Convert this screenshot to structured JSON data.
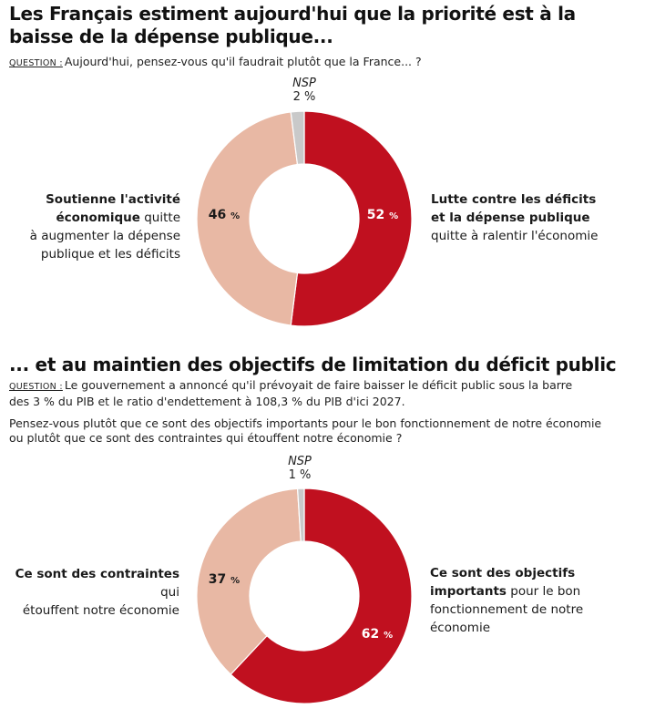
{
  "chart_data": [
    {
      "type": "pie",
      "title": "Les Français estiment aujourd'hui que la priorité est à la baisse de la dépense publique...",
      "question_tag": "QUESTION :",
      "question": "Aujourd'hui, pensez-vous qu'il faudrait plutôt que la France... ?",
      "slices": [
        {
          "name": "Lutte contre les déficits et la dépense publique quitte à ralentir l'économie",
          "value": 52,
          "label": "52 %",
          "color": "#c0101f"
        },
        {
          "name": "Soutienne l'activité économique quitte à augmenter la dépense publique et les déficits",
          "value": 46,
          "label": "46 %",
          "color": "#e8b8a4"
        },
        {
          "name": "NSP",
          "value": 2,
          "label": "2 %",
          "color": "#c9c9c9"
        }
      ],
      "labels": {
        "right_bold_1": "Lutte contre les déficits",
        "right_bold_2": "et la dépense publique",
        "right_normal": "quitte à ralentir l'économie",
        "left_bold_1": "Soutienne l'activité",
        "left_bold_2": "économique",
        "left_normal_2": " quitte",
        "left_normal_3": "à augmenter la dépense",
        "left_normal_4": "publique et les déficits",
        "nsp_name": "NSP",
        "nsp_value": "2 %"
      }
    },
    {
      "type": "pie",
      "title": "... et au maintien des objectifs de limitation du déficit public",
      "question_tag": "QUESTION :",
      "question_line1": "Le gouvernement a annoncé qu'il prévoyait de faire baisser le déficit public sous la barre",
      "question_line2": "des 3 % du PIB et le ratio d'endettement à 108,3 % du PIB d'ici 2027.",
      "question2_line1": "Pensez-vous plutôt que ce sont des objectifs importants pour le bon fonctionnement de notre économie",
      "question2_line2": "ou plutôt que ce sont des contraintes qui étouffent notre économie ?",
      "slices": [
        {
          "name": "Ce sont des objectifs importants pour le bon fonctionnement de notre économie",
          "value": 62,
          "label": "62 %",
          "color": "#c0101f"
        },
        {
          "name": "Ce sont des contraintes qui étouffent notre économie",
          "value": 37,
          "label": "37 %",
          "color": "#e8b8a4"
        },
        {
          "name": "NSP",
          "value": 1,
          "label": "1 %",
          "color": "#c9c9c9"
        }
      ],
      "labels": {
        "left_bold": "Ce sont des contraintes",
        "left_normal_1": " qui",
        "left_normal_2": "étouffent notre économie",
        "right_bold_1": "Ce sont des objectifs",
        "right_bold_2": "importants",
        "right_normal_2": " pour le bon",
        "right_normal_3": "fonctionnement de notre",
        "right_normal_4": "économie",
        "nsp_name": "NSP",
        "nsp_value": "1 %"
      }
    }
  ]
}
